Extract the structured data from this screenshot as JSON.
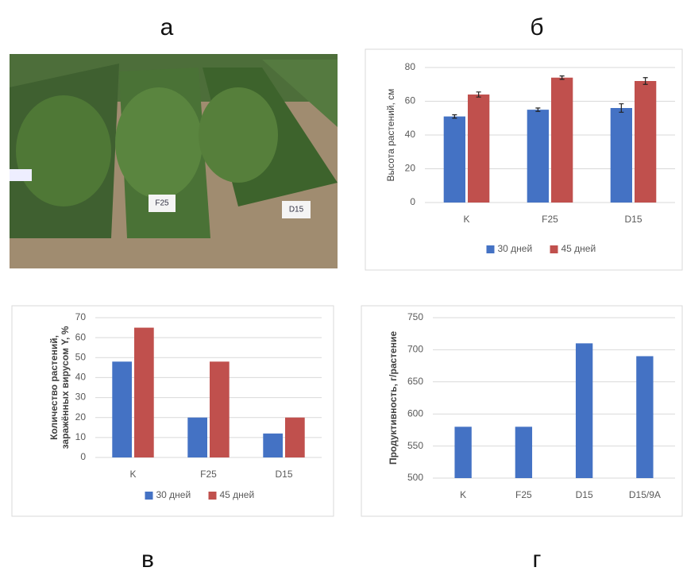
{
  "panel_labels": [
    "а",
    "б",
    "в",
    "г"
  ],
  "photo": {
    "signs": [
      "F25",
      "D15"
    ]
  },
  "chart_data": [
    {
      "type": "bar",
      "ylabel": "Высота растений, см",
      "categories": [
        "K",
        "F25",
        "D15"
      ],
      "series": [
        {
          "name": "30 дней",
          "color": "#4472c4",
          "values": [
            51,
            55,
            56
          ],
          "errors": [
            1,
            1,
            2.5
          ]
        },
        {
          "name": "45 дней",
          "color": "#c0504d",
          "values": [
            64,
            74,
            72
          ],
          "errors": [
            1.5,
            1,
            2
          ]
        }
      ],
      "ylim": [
        0,
        80
      ],
      "yticks": [
        0,
        20,
        40,
        60,
        80
      ],
      "grid": true,
      "legend": "bottom"
    },
    {
      "type": "bar",
      "ylabel": "Количество растений, заражённых вирусом Y, %",
      "categories": [
        "K",
        "F25",
        "D15"
      ],
      "series": [
        {
          "name": "30 дней",
          "color": "#4472c4",
          "values": [
            48,
            20,
            12
          ]
        },
        {
          "name": "45 дней",
          "color": "#c0504d",
          "values": [
            65,
            48,
            20
          ]
        }
      ],
      "ylim": [
        0,
        70
      ],
      "yticks": [
        0,
        10,
        20,
        30,
        40,
        50,
        60,
        70
      ],
      "grid": true,
      "legend": "bottom"
    },
    {
      "type": "bar",
      "ylabel": "Продуктивность, г/растение",
      "categories": [
        "K",
        "F25",
        "D15",
        "D15/9A"
      ],
      "values": [
        580,
        580,
        710,
        690
      ],
      "color": "#4472c4",
      "ylim": [
        500,
        750
      ],
      "yticks": [
        500,
        550,
        600,
        650,
        700,
        750
      ],
      "grid": true
    }
  ]
}
